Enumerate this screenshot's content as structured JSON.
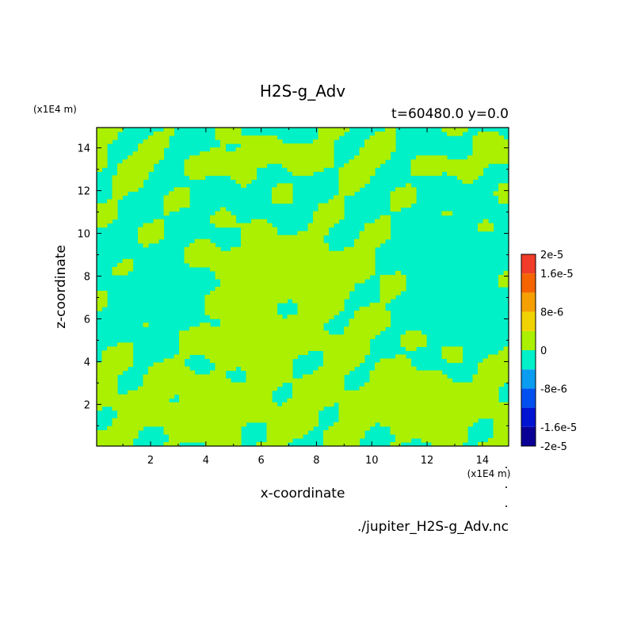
{
  "chart_data": {
    "type": "heatmap",
    "title": "H2S-g_Adv",
    "subtitle": "t=60480.0 y=0.0",
    "xlabel": "x-coordinate",
    "ylabel": "z-coordinate",
    "x_unit_label": "(x1E4 m)",
    "y_unit_label": "(x1E4 m)",
    "xlim": [
      0.05,
      14.95
    ],
    "ylim": [
      0.05,
      14.95
    ],
    "x_ticks": [
      2,
      4,
      6,
      8,
      10,
      12,
      14
    ],
    "y_ticks": [
      2,
      4,
      6,
      8,
      10,
      12,
      14
    ],
    "colorbar": {
      "levels": [
        -2e-05,
        -1.6e-05,
        -1.2e-05,
        -8e-06,
        -4e-06,
        0,
        4e-06,
        8e-06,
        1.2e-05,
        1.6e-05,
        2e-05
      ],
      "colors": [
        "#0a0096",
        "#0014d2",
        "#0050f0",
        "#0a9cf0",
        "#00f0c8",
        "#aaf000",
        "#f0d200",
        "#f5a000",
        "#f56400",
        "#f03c28"
      ],
      "labels": [
        {
          "text": "2e-5",
          "value": 2e-05
        },
        {
          "text": "1.6e-5",
          "value": 1.6e-05
        },
        {
          "text": "8e-6",
          "value": 8e-06
        },
        {
          "text": "0",
          "value": 0
        },
        {
          "text": "-8e-6",
          "value": -8e-06
        },
        {
          "text": "-1.6e-5",
          "value": -1.6e-05
        },
        {
          "text": "-2e-5",
          "value": -2e-05
        }
      ]
    },
    "field_summary": "Two-class field: values in [0, 4e-6) (yellow-green) and [-4e-6, 0) (cyan). Large positive blob centred near x=7, z=8; positive bands near z=13.5-14.5 and z=0.5-5.",
    "source_file": "./jupiter_H2S-g_Adv.nc"
  }
}
